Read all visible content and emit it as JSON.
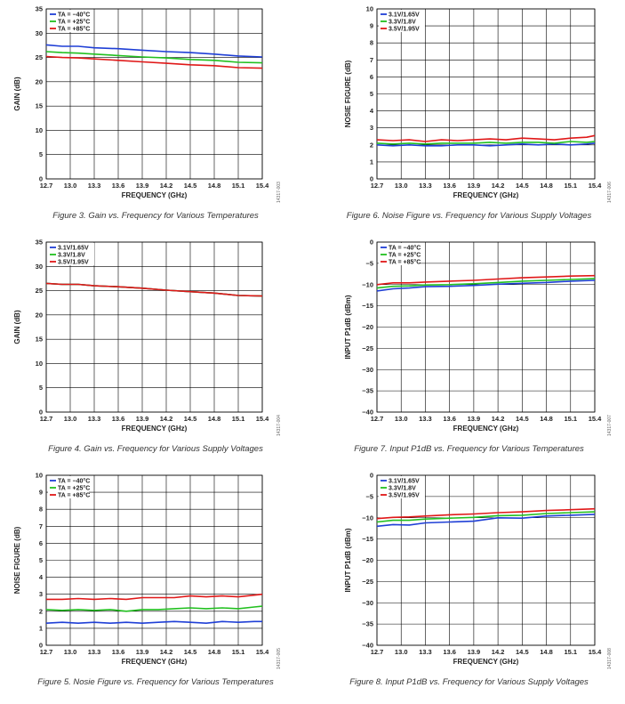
{
  "colors": {
    "blue": "#1f3fd6",
    "green": "#22c020",
    "red": "#e01818",
    "grid": "#000000"
  },
  "chart_data": [
    {
      "id": "fig3",
      "type": "line",
      "caption": "Figure 3. Gain vs. Frequency for Various Temperatures",
      "fig_code": "14317-003",
      "xlabel": "FREQUENCY (GHz)",
      "ylabel": "GAIN (dB)",
      "xlim": [
        12.7,
        15.4
      ],
      "ylim": [
        0,
        35
      ],
      "xticks": [
        "12.7",
        "13.0",
        "13.3",
        "13.6",
        "13.9",
        "14.2",
        "14.5",
        "14.8",
        "15.1",
        "15.4"
      ],
      "yticks": [
        "0",
        "5",
        "10",
        "15",
        "20",
        "25",
        "30",
        "35"
      ],
      "yvals": [
        0,
        5,
        10,
        15,
        20,
        25,
        30,
        35
      ],
      "legend_type": "temp",
      "series": [
        {
          "name": "TA = −40°C",
          "color": "blue",
          "x": [
            12.7,
            12.9,
            13.1,
            13.3,
            13.6,
            13.9,
            14.2,
            14.5,
            14.8,
            15.1,
            15.4
          ],
          "y": [
            27.6,
            27.3,
            27.3,
            27.0,
            26.8,
            26.5,
            26.2,
            26.0,
            25.7,
            25.3,
            25.1
          ]
        },
        {
          "name": "TA = +25°C",
          "color": "green",
          "x": [
            12.7,
            12.9,
            13.1,
            13.3,
            13.6,
            13.9,
            14.2,
            14.5,
            14.8,
            15.1,
            15.4
          ],
          "y": [
            26.2,
            26.0,
            25.9,
            25.7,
            25.4,
            25.1,
            24.9,
            24.6,
            24.4,
            24.0,
            23.9
          ]
        },
        {
          "name": "TA = +85°C",
          "color": "red",
          "x": [
            12.7,
            12.9,
            13.1,
            13.3,
            13.6,
            13.9,
            14.2,
            14.5,
            14.8,
            15.1,
            15.4
          ],
          "y": [
            25.2,
            25.0,
            24.9,
            24.7,
            24.4,
            24.1,
            23.8,
            23.5,
            23.3,
            22.9,
            22.8
          ]
        }
      ]
    },
    {
      "id": "fig6",
      "type": "line",
      "caption": "Figure 6. Noise Figure vs. Frequency for Various Supply Voltages",
      "fig_code": "14317-006",
      "xlabel": "FREQUENCY (GHz)",
      "ylabel": "NOSIE FIGURE (dB)",
      "xlim": [
        12.7,
        15.4
      ],
      "ylim": [
        0,
        10
      ],
      "xticks": [
        "12.7",
        "13.0",
        "13.3",
        "13.6",
        "13.9",
        "14.2",
        "14.5",
        "14.8",
        "15.1",
        "15.4"
      ],
      "yticks": [
        "0",
        "1",
        "2",
        "3",
        "4",
        "5",
        "6",
        "7",
        "8",
        "9",
        "10"
      ],
      "yvals": [
        0,
        1,
        2,
        3,
        4,
        5,
        6,
        7,
        8,
        9,
        10
      ],
      "legend_type": "volt",
      "series": [
        {
          "name": "3.1V/1.65V",
          "color": "blue",
          "x": [
            12.7,
            12.9,
            13.1,
            13.3,
            13.5,
            13.7,
            13.9,
            14.1,
            14.3,
            14.5,
            14.7,
            14.9,
            15.1,
            15.3,
            15.4
          ],
          "y": [
            2.0,
            1.95,
            2.0,
            1.95,
            1.95,
            2.0,
            2.0,
            1.95,
            2.0,
            2.05,
            2.0,
            2.05,
            2.0,
            2.05,
            2.1
          ]
        },
        {
          "name": "3.3V/1.8V",
          "color": "green",
          "x": [
            12.7,
            12.9,
            13.1,
            13.3,
            13.5,
            13.7,
            13.9,
            14.1,
            14.3,
            14.5,
            14.7,
            14.9,
            15.1,
            15.3,
            15.4
          ],
          "y": [
            2.1,
            2.05,
            2.1,
            2.05,
            2.1,
            2.1,
            2.1,
            2.15,
            2.1,
            2.15,
            2.15,
            2.1,
            2.2,
            2.15,
            2.2
          ]
        },
        {
          "name": "3.5V/1.95V",
          "color": "red",
          "x": [
            12.7,
            12.9,
            13.1,
            13.3,
            13.5,
            13.7,
            13.9,
            14.1,
            14.3,
            14.5,
            14.7,
            14.9,
            15.1,
            15.3,
            15.4
          ],
          "y": [
            2.3,
            2.25,
            2.3,
            2.2,
            2.3,
            2.25,
            2.3,
            2.35,
            2.3,
            2.4,
            2.35,
            2.3,
            2.4,
            2.45,
            2.55
          ]
        }
      ]
    },
    {
      "id": "fig4",
      "type": "line",
      "caption": "Figure 4. Gain vs. Frequency for Various Supply Voltages",
      "fig_code": "14317-004",
      "xlabel": "FREQUENCY (GHz)",
      "ylabel": "GAIN (dB)",
      "xlim": [
        12.7,
        15.4
      ],
      "ylim": [
        0,
        35
      ],
      "xticks": [
        "12.7",
        "13.0",
        "13.3",
        "13.6",
        "13.9",
        "14.2",
        "14.5",
        "14.8",
        "15.1",
        "15.4"
      ],
      "yticks": [
        "0",
        "5",
        "10",
        "15",
        "20",
        "25",
        "30",
        "35"
      ],
      "yvals": [
        0,
        5,
        10,
        15,
        20,
        25,
        30,
        35
      ],
      "legend_type": "volt",
      "series": [
        {
          "name": "3.1V/1.65V",
          "color": "blue",
          "x": [
            12.7,
            12.9,
            13.1,
            13.3,
            13.6,
            13.9,
            14.2,
            14.5,
            14.8,
            15.1,
            15.4
          ],
          "y": [
            26.5,
            26.3,
            26.3,
            26.0,
            25.8,
            25.5,
            25.1,
            24.8,
            24.5,
            24.0,
            23.9
          ]
        },
        {
          "name": "3.3V/1.8V",
          "color": "green",
          "x": [
            12.7,
            12.9,
            13.1,
            13.3,
            13.6,
            13.9,
            14.2,
            14.5,
            14.8,
            15.1,
            15.4
          ],
          "y": [
            26.5,
            26.3,
            26.3,
            26.0,
            25.8,
            25.5,
            25.1,
            24.8,
            24.5,
            24.0,
            23.9
          ]
        },
        {
          "name": "3.5V/1.95V",
          "color": "red",
          "x": [
            12.7,
            12.9,
            13.1,
            13.3,
            13.6,
            13.9,
            14.2,
            14.5,
            14.8,
            15.1,
            15.4
          ],
          "y": [
            26.5,
            26.3,
            26.3,
            26.0,
            25.8,
            25.5,
            25.1,
            24.8,
            24.5,
            24.0,
            23.9
          ]
        }
      ]
    },
    {
      "id": "fig7",
      "type": "line",
      "caption": "Figure 7. Input P1dB vs. Frequency for Various Temperatures",
      "fig_code": "14317-007",
      "xlabel": "FREQUENCY (GHz)",
      "ylabel": "INPUT P1dB (dBm)",
      "xlim": [
        12.7,
        15.4
      ],
      "ylim": [
        -40,
        0
      ],
      "xticks": [
        "12.7",
        "13.0",
        "13.3",
        "13.6",
        "13.9",
        "14.2",
        "14.5",
        "14.8",
        "15.1",
        "15.4"
      ],
      "yticks": [
        "−40",
        "−35",
        "−30",
        "−25",
        "−20",
        "−15",
        "−10",
        "−5",
        "0"
      ],
      "yvals": [
        -40,
        -35,
        -30,
        -25,
        -20,
        -15,
        -10,
        -5,
        0
      ],
      "legend_type": "temp",
      "series": [
        {
          "name": "TA = −40°C",
          "color": "blue",
          "x": [
            12.7,
            12.9,
            13.1,
            13.3,
            13.6,
            13.9,
            14.2,
            14.5,
            14.8,
            15.1,
            15.4
          ],
          "y": [
            -11.5,
            -11.0,
            -10.8,
            -10.5,
            -10.4,
            -10.2,
            -9.9,
            -9.7,
            -9.5,
            -9.2,
            -9.0
          ]
        },
        {
          "name": "TA = +25°C",
          "color": "green",
          "x": [
            12.7,
            12.9,
            13.1,
            13.3,
            13.6,
            13.9,
            14.2,
            14.5,
            14.8,
            15.1,
            15.4
          ],
          "y": [
            -10.8,
            -10.4,
            -10.3,
            -10.1,
            -10.0,
            -9.8,
            -9.5,
            -9.2,
            -9.0,
            -8.8,
            -8.6
          ]
        },
        {
          "name": "TA = +85°C",
          "color": "red",
          "x": [
            12.7,
            12.9,
            13.1,
            13.3,
            13.6,
            13.9,
            14.2,
            14.5,
            14.8,
            15.1,
            15.4
          ],
          "y": [
            -10.0,
            -9.6,
            -9.6,
            -9.4,
            -9.2,
            -9.0,
            -8.7,
            -8.4,
            -8.2,
            -8.0,
            -7.9
          ]
        }
      ]
    },
    {
      "id": "fig5",
      "type": "line",
      "caption": "Figure 5. Nosie Figure vs. Frequency for Various Temperatures",
      "fig_code": "14317-005",
      "xlabel": "FREQUENCY (GHz)",
      "ylabel": "NOISE FIGURE (dB)",
      "xlim": [
        12.7,
        15.4
      ],
      "ylim": [
        0,
        10
      ],
      "xticks": [
        "12.7",
        "13.0",
        "13.3",
        "13.6",
        "13.9",
        "14.2",
        "14.5",
        "14.8",
        "15.1",
        "15.4"
      ],
      "yticks": [
        "0",
        "1",
        "2",
        "3",
        "4",
        "5",
        "6",
        "7",
        "8",
        "9",
        "10"
      ],
      "yvals": [
        0,
        1,
        2,
        3,
        4,
        5,
        6,
        7,
        8,
        9,
        10
      ],
      "legend_type": "temp",
      "series": [
        {
          "name": "TA = −40°C",
          "color": "blue",
          "x": [
            12.7,
            12.9,
            13.1,
            13.3,
            13.5,
            13.7,
            13.9,
            14.1,
            14.3,
            14.5,
            14.7,
            14.9,
            15.1,
            15.3,
            15.4
          ],
          "y": [
            1.3,
            1.35,
            1.3,
            1.35,
            1.3,
            1.35,
            1.3,
            1.35,
            1.4,
            1.35,
            1.3,
            1.4,
            1.35,
            1.4,
            1.4
          ]
        },
        {
          "name": "TA = +25°C",
          "color": "green",
          "x": [
            12.7,
            12.9,
            13.1,
            13.3,
            13.5,
            13.7,
            13.9,
            14.1,
            14.3,
            14.5,
            14.7,
            14.9,
            15.1,
            15.3,
            15.4
          ],
          "y": [
            2.1,
            2.05,
            2.1,
            2.05,
            2.1,
            2.0,
            2.1,
            2.1,
            2.15,
            2.2,
            2.15,
            2.2,
            2.15,
            2.25,
            2.3
          ]
        },
        {
          "name": "TA = +85°C",
          "color": "red",
          "x": [
            12.7,
            12.9,
            13.1,
            13.3,
            13.5,
            13.7,
            13.9,
            14.1,
            14.3,
            14.5,
            14.7,
            14.9,
            15.1,
            15.3,
            15.4
          ],
          "y": [
            2.7,
            2.7,
            2.75,
            2.7,
            2.75,
            2.7,
            2.8,
            2.8,
            2.8,
            2.9,
            2.85,
            2.9,
            2.85,
            2.95,
            3.0
          ]
        }
      ]
    },
    {
      "id": "fig8",
      "type": "line",
      "caption": "Figure 8. Input P1dB vs. Frequency for Various Supply Voltages",
      "fig_code": "14317-008",
      "xlabel": "FREQUENCY (GHz)",
      "ylabel": "INPUT P1dB (dBm)",
      "xlim": [
        12.7,
        15.4
      ],
      "ylim": [
        -40,
        0
      ],
      "xticks": [
        "12.7",
        "13.0",
        "13.3",
        "13.6",
        "13.9",
        "14.2",
        "14.5",
        "14.8",
        "15.1",
        "15.4"
      ],
      "yticks": [
        "−40",
        "−35",
        "−30",
        "−25",
        "−20",
        "−15",
        "−10",
        "−5",
        "0"
      ],
      "yvals": [
        -40,
        -35,
        -30,
        -25,
        -20,
        -15,
        -10,
        -5,
        0
      ],
      "legend_type": "volt",
      "series": [
        {
          "name": "3.1V/1.65V",
          "color": "blue",
          "x": [
            12.7,
            12.9,
            13.1,
            13.3,
            13.6,
            13.9,
            14.2,
            14.5,
            14.8,
            15.1,
            15.4
          ],
          "y": [
            -12.0,
            -11.6,
            -11.7,
            -11.2,
            -11.0,
            -10.8,
            -10.0,
            -10.1,
            -9.6,
            -9.4,
            -9.2
          ]
        },
        {
          "name": "3.3V/1.8V",
          "color": "green",
          "x": [
            12.7,
            12.9,
            13.1,
            13.3,
            13.6,
            13.9,
            14.2,
            14.5,
            14.8,
            15.1,
            15.4
          ],
          "y": [
            -11.0,
            -10.6,
            -10.6,
            -10.3,
            -10.1,
            -9.9,
            -9.5,
            -9.4,
            -9.0,
            -8.8,
            -8.6
          ]
        },
        {
          "name": "3.5V/1.95V",
          "color": "red",
          "x": [
            12.7,
            12.9,
            13.1,
            13.3,
            13.6,
            13.9,
            14.2,
            14.5,
            14.8,
            15.1,
            15.4
          ],
          "y": [
            -10.2,
            -9.9,
            -9.8,
            -9.6,
            -9.3,
            -9.1,
            -8.8,
            -8.6,
            -8.3,
            -8.1,
            -7.9
          ]
        }
      ]
    }
  ]
}
